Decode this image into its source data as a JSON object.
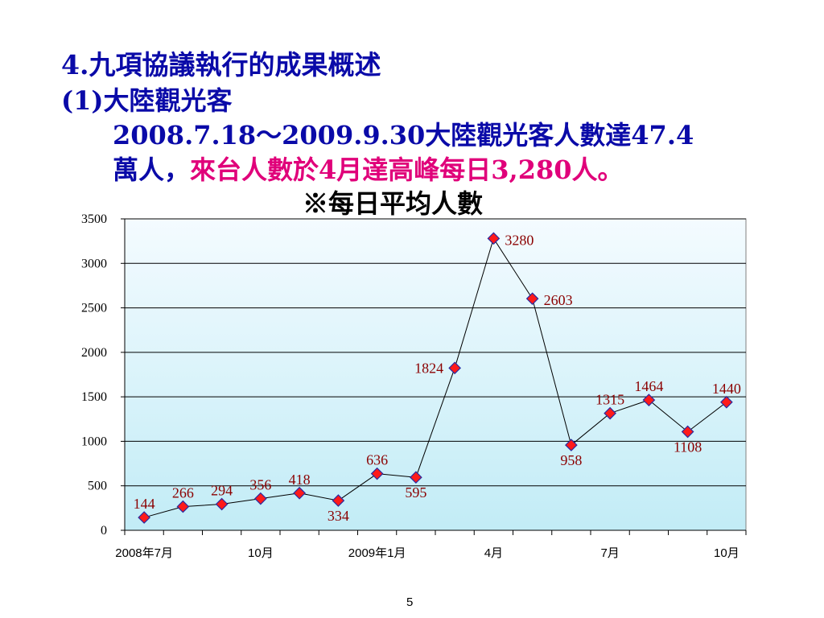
{
  "slide": {
    "heading_line1": "4.九項協議執行的成果概述",
    "heading_line2": "(1)大陸觀光客",
    "heading_line3": "2008.7.18～2009.9.30大陸觀光客人數達47.4",
    "heading_line4_a": "萬人，",
    "heading_line4_b": "來台人數於4月達高峰每日3,280人",
    "heading_line4_c": "。",
    "page_number": "5"
  },
  "colors": {
    "heading": "#0a0aa8",
    "highlight": "#e0007a",
    "plot_top": "#f4fbff",
    "plot_bottom": "#c2ecf6",
    "marker": "#ff1a1a",
    "marker_outline": "#2a2aa0",
    "data_label": "#8b0000"
  },
  "chart_data": {
    "type": "line",
    "title": "※每日平均人數",
    "x": [
      "2008年7月",
      "",
      "",
      "10月",
      "",
      "",
      "2009年1月",
      "",
      "",
      "4月",
      "",
      "",
      "7月",
      "",
      "",
      "10月"
    ],
    "series": [
      {
        "values": [
          144,
          266,
          294,
          356,
          418,
          334,
          636,
          595,
          1824,
          3280,
          2603,
          958,
          1315,
          1464,
          1108,
          1440
        ]
      }
    ],
    "ylim": [
      0,
      3500
    ],
    "yticks": [
      0,
      500,
      1000,
      1500,
      2000,
      2500,
      3000,
      3500
    ],
    "grid": true,
    "legend": "none",
    "marker": "diamond"
  }
}
